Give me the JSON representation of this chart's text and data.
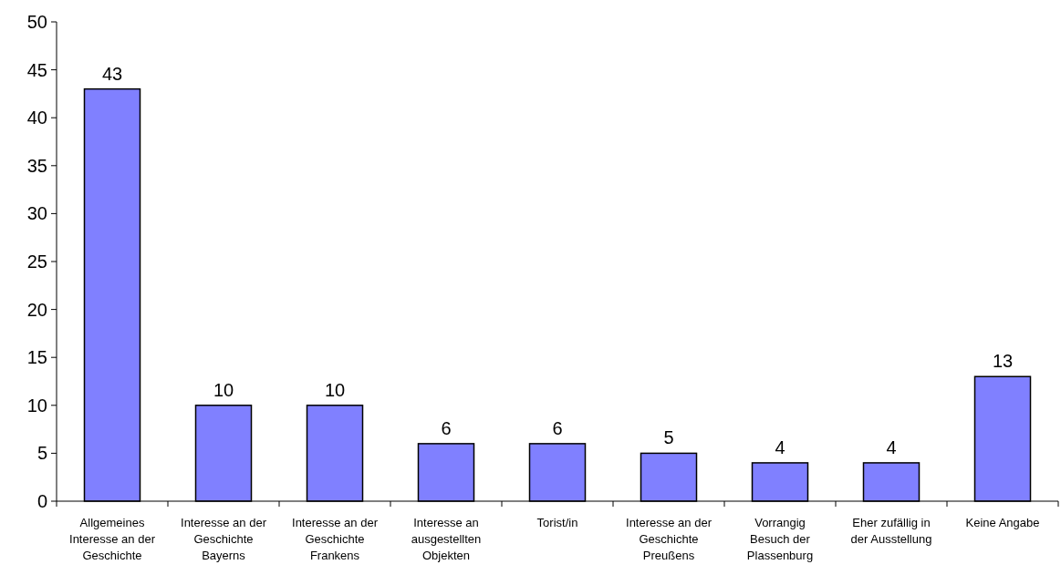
{
  "chart_data": {
    "type": "bar",
    "categories": [
      "Allgemeines Interesse an der Geschichte",
      "Interesse an der Geschichte Bayerns",
      "Interesse an der Geschichte Frankens",
      "Interesse an ausgestellten Objekten",
      "Torist/in",
      "Interesse an der Geschichte Preußens",
      "Vorrangig Besuch der Plassenburg",
      "Eher zufällig in der Ausstellung",
      "Keine Angabe"
    ],
    "values": [
      43,
      10,
      10,
      6,
      6,
      5,
      4,
      4,
      13
    ],
    "color": "#8080ff",
    "ylim": [
      0,
      50
    ],
    "yticks": [
      0,
      5,
      10,
      15,
      20,
      25,
      30,
      35,
      40,
      45,
      50
    ],
    "data_labels": true,
    "grid": false
  }
}
